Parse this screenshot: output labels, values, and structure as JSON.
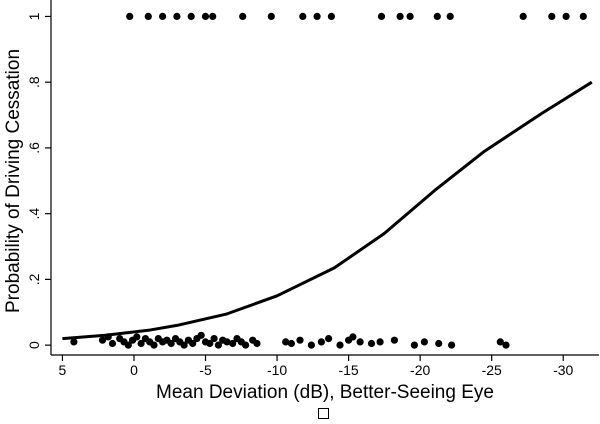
{
  "chart_data": {
    "type": "scatter",
    "title": "",
    "xlabel": "Mean Deviation (dB), Better-Seeing Eye",
    "ylabel": "Probability of Driving Cessation",
    "xlim": [
      5.8,
      -32.5
    ],
    "x_reversed": true,
    "ylim": [
      -0.03,
      1.05
    ],
    "x_ticks": [
      5,
      0,
      -5,
      -10,
      -15,
      -20,
      -25,
      -30
    ],
    "x_tick_labels": [
      "5",
      "0",
      "-5",
      "-10",
      "-15",
      "-20",
      "-25",
      "-30"
    ],
    "y_ticks": [
      0,
      0.2,
      0.4,
      0.6,
      0.8,
      1
    ],
    "y_tick_labels": [
      "0",
      ".2",
      ".4",
      ".6",
      ".8",
      "1"
    ],
    "grid": false,
    "legend": "none",
    "series": [
      {
        "kind": "points",
        "color": "#000000",
        "points": [
          [
            -1.0,
            1
          ],
          [
            0.3,
            1
          ],
          [
            -2.0,
            1
          ],
          [
            -3.0,
            1
          ],
          [
            -4.0,
            1
          ],
          [
            -5.0,
            1
          ],
          [
            -5.5,
            1
          ],
          [
            -7.6,
            1
          ],
          [
            -9.6,
            1
          ],
          [
            -11.8,
            1
          ],
          [
            -12.8,
            1
          ],
          [
            -13.8,
            1
          ],
          [
            -17.3,
            1
          ],
          [
            -18.6,
            1
          ],
          [
            -19.3,
            1
          ],
          [
            -21.2,
            1
          ],
          [
            -22.1,
            1
          ],
          [
            -27.2,
            1
          ],
          [
            -29.2,
            1
          ],
          [
            -30.2,
            1
          ],
          [
            -31.4,
            1
          ],
          [
            4.2,
            0.01
          ],
          [
            2.2,
            0.015
          ],
          [
            1.8,
            0.025
          ],
          [
            1.5,
            0.005
          ],
          [
            1.0,
            0.02
          ],
          [
            0.7,
            0.01
          ],
          [
            0.4,
            0.0
          ],
          [
            0.1,
            0.015
          ],
          [
            -0.2,
            0.025
          ],
          [
            -0.5,
            0.005
          ],
          [
            -0.8,
            0.02
          ],
          [
            -1.1,
            0.01
          ],
          [
            -1.4,
            0.0
          ],
          [
            -1.7,
            0.02
          ],
          [
            -2.0,
            0.01
          ],
          [
            -2.3,
            0.015
          ],
          [
            -2.6,
            0.005
          ],
          [
            -2.9,
            0.02
          ],
          [
            -3.2,
            0.01
          ],
          [
            -3.5,
            0.0
          ],
          [
            -3.8,
            0.015
          ],
          [
            -4.1,
            0.005
          ],
          [
            -4.4,
            0.02
          ],
          [
            -4.7,
            0.03
          ],
          [
            -5.0,
            0.01
          ],
          [
            -5.3,
            0.005
          ],
          [
            -5.6,
            0.02
          ],
          [
            -5.9,
            0.0
          ],
          [
            -6.2,
            0.015
          ],
          [
            -6.5,
            0.01
          ],
          [
            -6.9,
            0.005
          ],
          [
            -7.2,
            0.02
          ],
          [
            -7.5,
            0.01
          ],
          [
            -7.8,
            0.0
          ],
          [
            -8.3,
            0.015
          ],
          [
            -8.6,
            0.005
          ],
          [
            -10.6,
            0.01
          ],
          [
            -11.0,
            0.005
          ],
          [
            -11.6,
            0.015
          ],
          [
            -12.4,
            0.0
          ],
          [
            -13.1,
            0.01
          ],
          [
            -13.6,
            0.02
          ],
          [
            -14.4,
            0.0
          ],
          [
            -15.0,
            0.015
          ],
          [
            -15.3,
            0.025
          ],
          [
            -15.8,
            0.01
          ],
          [
            -16.6,
            0.005
          ],
          [
            -17.2,
            0.01
          ],
          [
            -18.2,
            0.015
          ],
          [
            -19.6,
            0.0
          ],
          [
            -20.3,
            0.01
          ],
          [
            -21.3,
            0.005
          ],
          [
            -22.2,
            0.0
          ],
          [
            -25.6,
            0.01
          ],
          [
            -26.0,
            0.0
          ]
        ]
      },
      {
        "kind": "line",
        "color": "#000000",
        "points": [
          [
            5.0,
            0.02
          ],
          [
            2.0,
            0.03
          ],
          [
            -1.0,
            0.045
          ],
          [
            -3.0,
            0.06
          ],
          [
            -6.5,
            0.095
          ],
          [
            -10.0,
            0.15
          ],
          [
            -14.0,
            0.235
          ],
          [
            -17.5,
            0.34
          ],
          [
            -21.0,
            0.47
          ],
          [
            -24.5,
            0.59
          ],
          [
            -28.5,
            0.705
          ],
          [
            -32.0,
            0.8
          ]
        ]
      }
    ]
  },
  "footer_glyph": "□"
}
